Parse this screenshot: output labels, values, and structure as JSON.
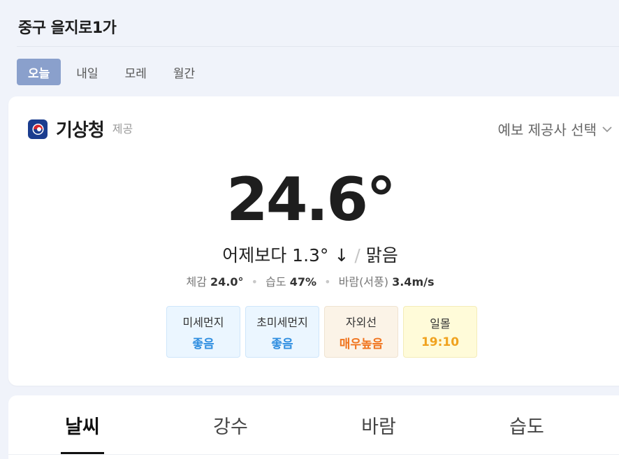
{
  "location": "중구 을지로1가",
  "day_tabs": [
    {
      "label": "오늘",
      "active": true
    },
    {
      "label": "내일",
      "active": false
    },
    {
      "label": "모레",
      "active": false
    },
    {
      "label": "월간",
      "active": false
    }
  ],
  "provider": {
    "name": "기상청",
    "suffix": "제공",
    "select_label": "예보 제공사 선택",
    "logo_icon": "kma-logo-icon",
    "logo_color": "#1b3d8f"
  },
  "current": {
    "temperature": "24.6°",
    "compare_text": "어제보다 1.3° ↓",
    "separator": "/",
    "condition": "맑음",
    "feels_like_label": "체감",
    "feels_like_value": "24.0°",
    "humidity_label": "습도",
    "humidity_value": "47%",
    "wind_label": "바람(서풍)",
    "wind_value": "3.4m/s"
  },
  "chips": [
    {
      "label": "미세먼지",
      "value": "좋음",
      "color": "#2f8ee0"
    },
    {
      "label": "초미세먼지",
      "value": "좋음",
      "color": "#2f8ee0"
    },
    {
      "label": "자외선",
      "value": "매우높음",
      "color": "#f0741e"
    },
    {
      "label": "일몰",
      "value": "19:10",
      "color": "#f0a21e"
    }
  ],
  "info_tabs": [
    {
      "label": "날씨",
      "active": true
    },
    {
      "label": "강수",
      "active": false
    },
    {
      "label": "바람",
      "active": false
    },
    {
      "label": "습도",
      "active": false
    }
  ]
}
